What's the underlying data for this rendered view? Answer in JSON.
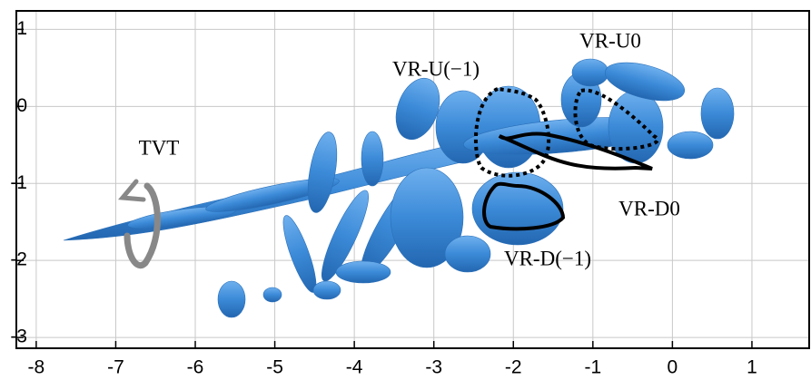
{
  "chart_data": {
    "type": "isosurface",
    "xlim": [
      -8.25,
      1.72
    ],
    "ylim": [
      -3.14,
      1.24
    ],
    "xticks": [
      -8,
      -7,
      -6,
      -5,
      -4,
      -3,
      -2,
      -1,
      0,
      1
    ],
    "yticks": [
      -3,
      -2,
      -1,
      0,
      1
    ],
    "grid": true,
    "annotations": [
      "TVT",
      "VR-U(−1)",
      "VR-U0",
      "VR-D0",
      "VR-D(−1)"
    ]
  }
}
